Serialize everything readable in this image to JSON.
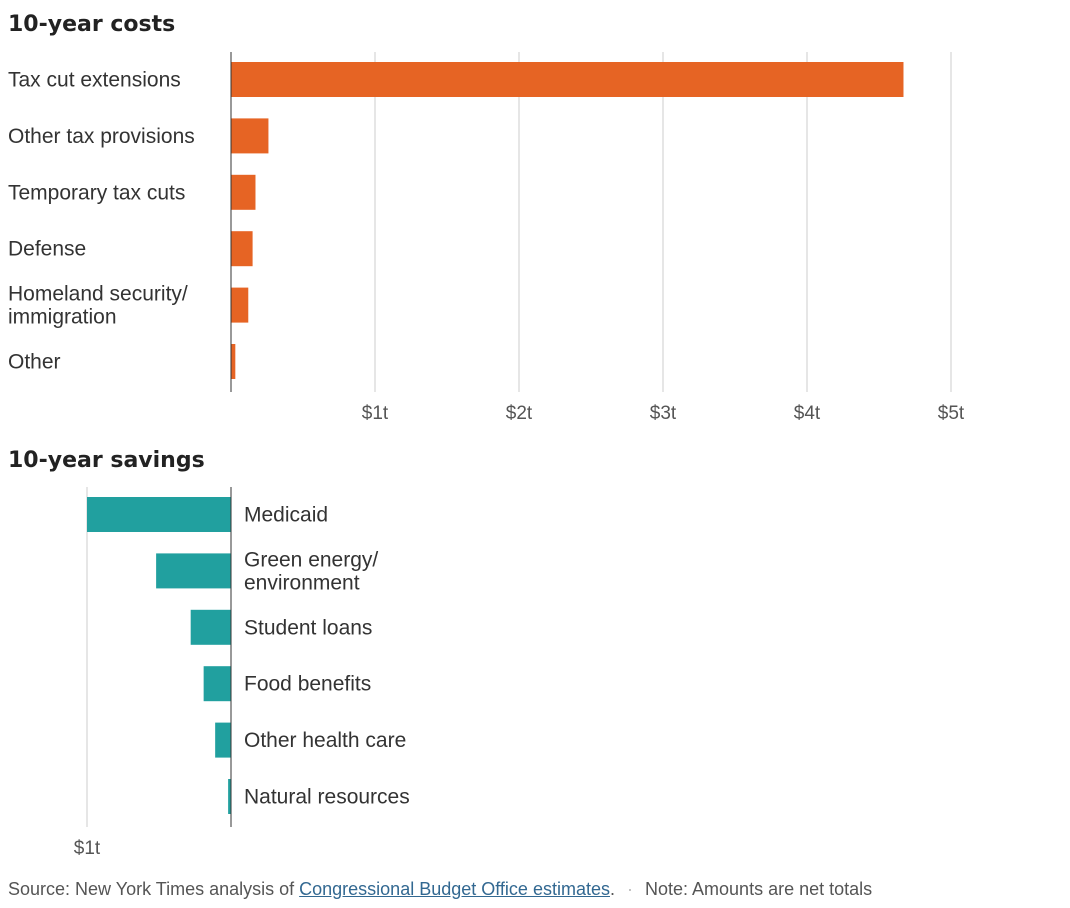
{
  "colors": {
    "costs": "#E66424",
    "savings": "#21A09F",
    "gridline": "#cccccc",
    "axis": "#333333"
  },
  "chart_data": [
    {
      "type": "bar",
      "orientation": "horizontal",
      "title": "10-year costs",
      "categories": [
        [
          "Tax cut extensions"
        ],
        [
          "Other tax provisions"
        ],
        [
          "Temporary tax cuts"
        ],
        [
          "Defense"
        ],
        [
          "Homeland security/",
          "immigration"
        ],
        [
          "Other"
        ]
      ],
      "values": [
        4.67,
        0.26,
        0.17,
        0.15,
        0.12,
        0.03
      ],
      "unit": "trillions of dollars",
      "xlim": [
        0,
        5
      ],
      "ticks": [
        1,
        2,
        3,
        4,
        5
      ],
      "tick_labels": [
        "$1t",
        "$2t",
        "$3t",
        "$4t",
        "$5t"
      ],
      "grid": true
    },
    {
      "type": "bar",
      "orientation": "horizontal",
      "title": "10-year savings",
      "categories": [
        [
          "Medicaid"
        ],
        [
          "Green energy/",
          "environment"
        ],
        [
          "Student loans"
        ],
        [
          "Food benefits"
        ],
        [
          "Other health care"
        ],
        [
          "Natural resources"
        ]
      ],
      "values": [
        1.0,
        0.52,
        0.28,
        0.19,
        0.11,
        0.02
      ],
      "unit": "trillions of dollars",
      "xlim": [
        0,
        1
      ],
      "ticks": [
        1
      ],
      "tick_labels": [
        "$1t"
      ],
      "grid": true
    }
  ],
  "footer": {
    "source_prefix": "Source: New York Times analysis of ",
    "source_link": "Congressional Budget Office estimates",
    "source_suffix": ".",
    "separator": "·",
    "note": "Note: Amounts are net totals"
  }
}
